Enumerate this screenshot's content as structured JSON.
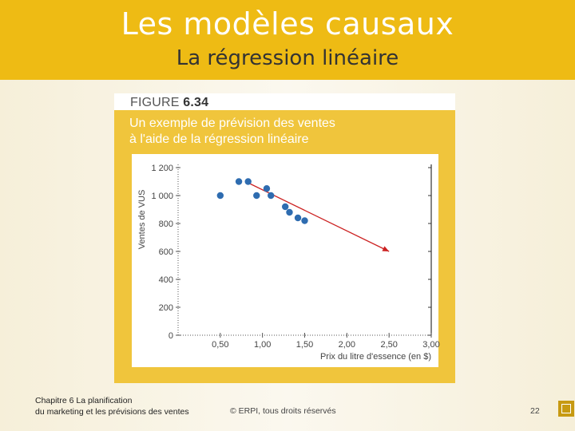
{
  "slide": {
    "title": "Les modèles causaux",
    "subtitle": "La régression linéaire"
  },
  "figure": {
    "label_prefix": "FIGURE ",
    "label_number": "6.34",
    "caption_line1": "Un exemple de prévision des ventes",
    "caption_line2": "à l'aide de la régression linéaire"
  },
  "chart_data": {
    "type": "scatter",
    "xlabel": "Prix du litre d'essence (en $)",
    "ylabel": "Ventes de VUS",
    "xlim": [
      0,
      3.0
    ],
    "ylim": [
      0,
      1200
    ],
    "xticks": [
      0.5,
      1.0,
      1.5,
      2.0,
      2.5,
      3.0
    ],
    "xtick_labels": [
      "0,50",
      "1,00",
      "1,50",
      "2,00",
      "2,50",
      "3,00"
    ],
    "yticks": [
      0,
      200,
      400,
      600,
      800,
      1000,
      1200
    ],
    "ytick_labels": [
      "0",
      "200",
      "400",
      "600",
      "800",
      "1 000",
      "1 200"
    ],
    "points": [
      {
        "x": 0.5,
        "y": 1000
      },
      {
        "x": 0.72,
        "y": 1100
      },
      {
        "x": 0.83,
        "y": 1100
      },
      {
        "x": 0.93,
        "y": 1000
      },
      {
        "x": 1.05,
        "y": 1050
      },
      {
        "x": 1.1,
        "y": 1000
      },
      {
        "x": 1.27,
        "y": 920
      },
      {
        "x": 1.32,
        "y": 880
      },
      {
        "x": 1.42,
        "y": 840
      },
      {
        "x": 1.5,
        "y": 820
      }
    ],
    "regression_line": {
      "x": [
        0.8,
        2.5
      ],
      "y": [
        1100,
        600
      ]
    },
    "grid": false,
    "colors": {
      "points": "#2e6cb0",
      "line": "#cc2222",
      "axis": "#555555"
    }
  },
  "footer": {
    "chapter_line1": "Chapitre 6 La planification",
    "chapter_line2": "du marketing et les prévisions des ventes",
    "copyright": "© ERPI, tous droits réservés",
    "page": "22"
  }
}
